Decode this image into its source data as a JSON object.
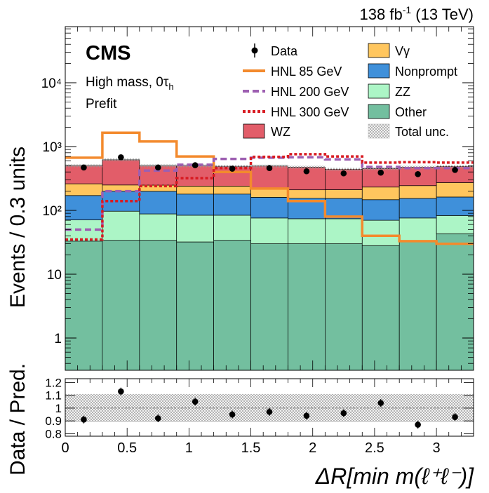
{
  "header": {
    "lumi_value": "138 fb",
    "lumi_exp": "-1",
    "energy": " (13 TeV)"
  },
  "labels": {
    "experiment": "CMS",
    "region": "High mass, 0τ",
    "region_sub": "h",
    "status": "Prefit"
  },
  "legend": {
    "data": "Data",
    "hnl85": "HNL 85 GeV",
    "hnl200": "HNL 200 GeV",
    "hnl300": "HNL 300 GeV",
    "wz": "WZ",
    "vgamma": "Vγ",
    "nonprompt": "Nonprompt",
    "zz": "ZZ",
    "other": "Other",
    "unc": "Total unc."
  },
  "colors": {
    "other": "#73bf9f",
    "zz": "#acf5c6",
    "nonprompt": "#3f90da",
    "vgamma": "#ffc65e",
    "wz": "#e25d69",
    "hnl85": "#f38a2d",
    "hnl200": "#9d5fb1",
    "hnl300": "#d81b22"
  },
  "chart_data": [
    {
      "type": "bar",
      "stacked": true,
      "ylabel": "Events / 0.3 units",
      "yscale": "log",
      "ylim": [
        0.2,
        50000
      ],
      "xlim": [
        0,
        3.3
      ],
      "bin_edges": [
        0,
        0.3,
        0.6,
        0.9,
        1.2,
        1.5,
        1.8,
        2.1,
        2.4,
        2.7,
        3.0,
        3.3
      ],
      "series": [
        {
          "name": "Other",
          "values": [
            33,
            34,
            34,
            32,
            34,
            30,
            30,
            30,
            28,
            32,
            43
          ]
        },
        {
          "name": "ZZ",
          "values": [
            38,
            63,
            54,
            52,
            50,
            46,
            44,
            44,
            42,
            44,
            40
          ]
        },
        {
          "name": "Nonprompt",
          "values": [
            100,
            103,
            111,
            96,
            96,
            84,
            81,
            80,
            77,
            78,
            79
          ]
        },
        {
          "name": "Vγ",
          "values": [
            90,
            50,
            50,
            60,
            60,
            65,
            55,
            57,
            85,
            90,
            110
          ]
        },
        {
          "name": "WZ",
          "values": [
            240,
            370,
            250,
            260,
            250,
            270,
            265,
            230,
            220,
            230,
            215
          ]
        }
      ],
      "stack_totals": [
        500,
        620,
        500,
        500,
        490,
        495,
        475,
        441,
        452,
        474,
        487
      ],
      "signals": [
        {
          "name": "HNL 85 GeV",
          "values": [
            670,
            1650,
            1200,
            700,
            400,
            220,
            140,
            80,
            40,
            33,
            30
          ]
        },
        {
          "name": "HNL 200 GeV",
          "values": [
            50,
            200,
            420,
            520,
            640,
            670,
            680,
            630,
            480,
            460,
            460
          ]
        },
        {
          "name": "HNL 300 GeV",
          "values": [
            35,
            140,
            240,
            320,
            460,
            690,
            760,
            700,
            560,
            570,
            560
          ]
        }
      ],
      "data": {
        "x": [
          0.15,
          0.45,
          0.75,
          1.05,
          1.35,
          1.65,
          1.95,
          2.25,
          2.55,
          2.85,
          3.15
        ],
        "y": [
          470,
          680,
          470,
          510,
          450,
          460,
          410,
          380,
          390,
          370,
          430
        ]
      },
      "yticks": [
        "1",
        "10",
        "10²",
        "10³",
        "10⁴"
      ]
    },
    {
      "type": "scatter",
      "ylabel": "Data / Pred.",
      "xlabel": "ΔR[min m(ℓ⁺ℓ⁻)]",
      "ylim": [
        0.78,
        1.23
      ],
      "xlim": [
        0,
        3.3
      ],
      "x": [
        0.15,
        0.45,
        0.75,
        1.05,
        1.35,
        1.65,
        1.95,
        2.25,
        2.55,
        2.85,
        3.15
      ],
      "y": [
        0.91,
        1.13,
        0.92,
        1.05,
        0.95,
        0.97,
        0.94,
        0.96,
        1.04,
        0.87,
        0.93
      ],
      "yerr": [
        0.03,
        0.03,
        0.03,
        0.03,
        0.03,
        0.03,
        0.03,
        0.03,
        0.03,
        0.03,
        0.03
      ],
      "unc_band": [
        0.89,
        1.11
      ],
      "yticks": [
        "0.8",
        "0.9",
        "1",
        "1.1",
        "1.2"
      ],
      "xticks": [
        "0",
        "0.5",
        "1",
        "1.5",
        "2",
        "2.5",
        "3"
      ]
    }
  ]
}
